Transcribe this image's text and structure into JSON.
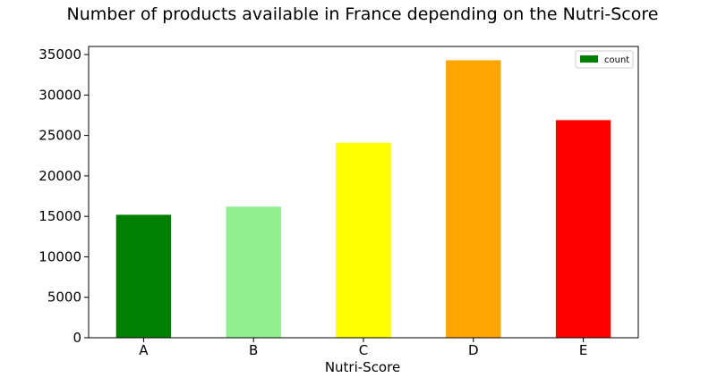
{
  "chart_data": {
    "type": "bar",
    "title": "Number of products available in France depending on the Nutri-Score",
    "xlabel": "Nutri-Score",
    "ylabel": "",
    "categories": [
      "A",
      "B",
      "C",
      "D",
      "E"
    ],
    "series": [
      {
        "name": "count",
        "values": [
          15200,
          16200,
          24100,
          34300,
          26900
        ]
      }
    ],
    "bar_colors": [
      "#008000",
      "#90ee90",
      "#ffff00",
      "#ffa500",
      "#ff0000"
    ],
    "legend_color": "#008000",
    "ylim": [
      0,
      36000
    ],
    "yticks": [
      0,
      5000,
      10000,
      15000,
      20000,
      25000,
      30000,
      35000
    ],
    "grid": false,
    "legend_position": "top-right"
  }
}
